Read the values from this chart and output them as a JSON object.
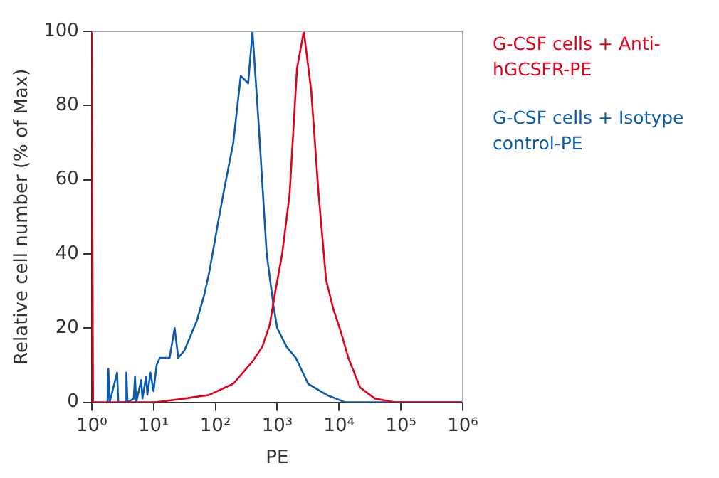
{
  "chart_data": {
    "type": "line",
    "xlabel": "PE",
    "ylabel": "Relative cell number (% of Max)",
    "log": "x",
    "xlim": [
      1,
      1000000
    ],
    "xticks": [
      {
        "value": 1,
        "label": "10⁰"
      },
      {
        "value": 10,
        "label": "10¹"
      },
      {
        "value": 100,
        "label": "10²"
      },
      {
        "value": 1000,
        "label": "10³"
      },
      {
        "value": 10000,
        "label": "10⁴"
      },
      {
        "value": 100000,
        "label": "10⁵"
      },
      {
        "value": 1000000,
        "label": "10⁶"
      }
    ],
    "ylim": [
      0,
      100
    ],
    "yticks": [
      0,
      20,
      40,
      60,
      80,
      100
    ],
    "grid": false,
    "legend": "right",
    "marker": "none",
    "line_style": "solid",
    "series": [
      {
        "name": "G-CSF cells + Anti-hGCSFR-PE",
        "color": "#e0001b",
        "x": [
          1,
          1.05,
          10.7,
          31.6,
          79.4,
          195,
          398,
          575,
          759,
          912,
          1202,
          1585,
          2089,
          2692,
          3548,
          4677,
          6166,
          8128,
          10700,
          14125,
          21900,
          38000,
          79400,
          1000000
        ],
        "values": [
          100,
          0,
          0,
          1,
          2,
          5,
          11,
          15,
          21,
          29,
          40,
          56,
          90,
          100,
          84,
          56,
          33,
          25,
          19,
          12,
          4,
          1,
          0,
          0
        ]
      },
      {
        "name": "G-CSF cells + Isotype control-PE",
        "color": "#0a5bb0",
        "x": [
          1.8,
          1.86,
          1.95,
          2.57,
          2.69,
          3.55,
          3.63,
          3.8,
          4.79,
          5.01,
          5.25,
          6.31,
          6.61,
          7.59,
          7.94,
          8.91,
          10,
          11.2,
          12.6,
          18.2,
          21.9,
          25.1,
          31.6,
          39.8,
          50.1,
          66.1,
          79.4,
          112,
          141,
          195,
          257,
          339,
          398,
          501,
          589,
          676,
          871,
          1000,
          1413,
          1995,
          3162,
          6310,
          12600,
          20000,
          1000000
        ],
        "values": [
          0,
          9,
          0,
          8,
          0,
          0,
          8,
          0,
          1,
          7,
          0,
          6,
          1,
          7,
          2,
          8,
          3,
          10,
          12,
          12,
          20,
          12,
          14,
          18,
          22,
          29,
          35,
          49,
          58,
          70,
          88,
          86,
          100,
          75,
          56,
          40,
          26,
          20,
          15,
          12,
          5,
          2,
          0,
          0,
          0
        ]
      }
    ]
  }
}
